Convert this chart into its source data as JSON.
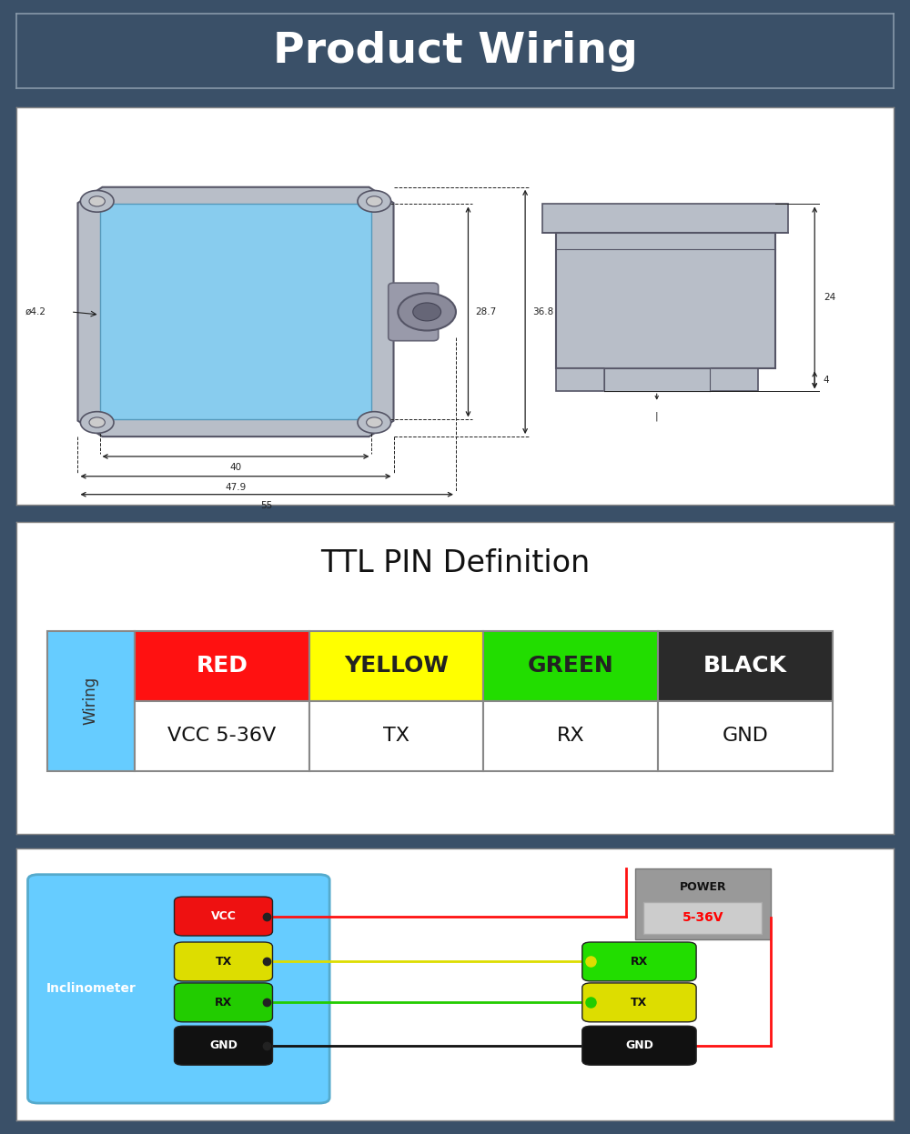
{
  "bg_color": "#3a5068",
  "title_text": "Product Wiring",
  "title_color": "#ffffff",
  "panel_bg": "#ffffff",
  "ttl_title": "TTL PIN Definition",
  "wire_labels": [
    "RED",
    "YELLOW",
    "GREEN",
    "BLACK"
  ],
  "wire_label_colors_bg": [
    "#ff1111",
    "#ffff00",
    "#22dd00",
    "#2a2a2a"
  ],
  "wire_label_colors_text": [
    "#ffffff",
    "#222222",
    "#222222",
    "#ffffff"
  ],
  "wire_functions": [
    "VCC 5-36V",
    "TX",
    "RX",
    "GND"
  ],
  "wiring_label_bg": "#66ccff",
  "wiring_label_text": "Wiring",
  "inclinometer_bg": "#66ccff",
  "inclinometer_label": "Inclinometer",
  "device_pins_left": [
    "VCC",
    "TX",
    "RX",
    "GND"
  ],
  "device_pins_left_colors": [
    "#ee1111",
    "#dddd00",
    "#22cc00",
    "#111111"
  ],
  "device_pins_right": [
    "RX",
    "TX",
    "GND"
  ],
  "device_pins_right_colors": [
    "#22dd00",
    "#dddd00",
    "#111111"
  ],
  "power_box_bg": "#999999",
  "power_label": "POWER",
  "power_voltage": "5-36V",
  "power_voltage_color": "#ff0000",
  "wire_line_colors": [
    "#ff1111",
    "#dddd00",
    "#22cc00",
    "#111111"
  ],
  "dim_color": "#222222",
  "body_color": "#b8bec8",
  "body_edge_color": "#555566",
  "face_color": "#88ccee",
  "face_edge_color": "#5599bb"
}
